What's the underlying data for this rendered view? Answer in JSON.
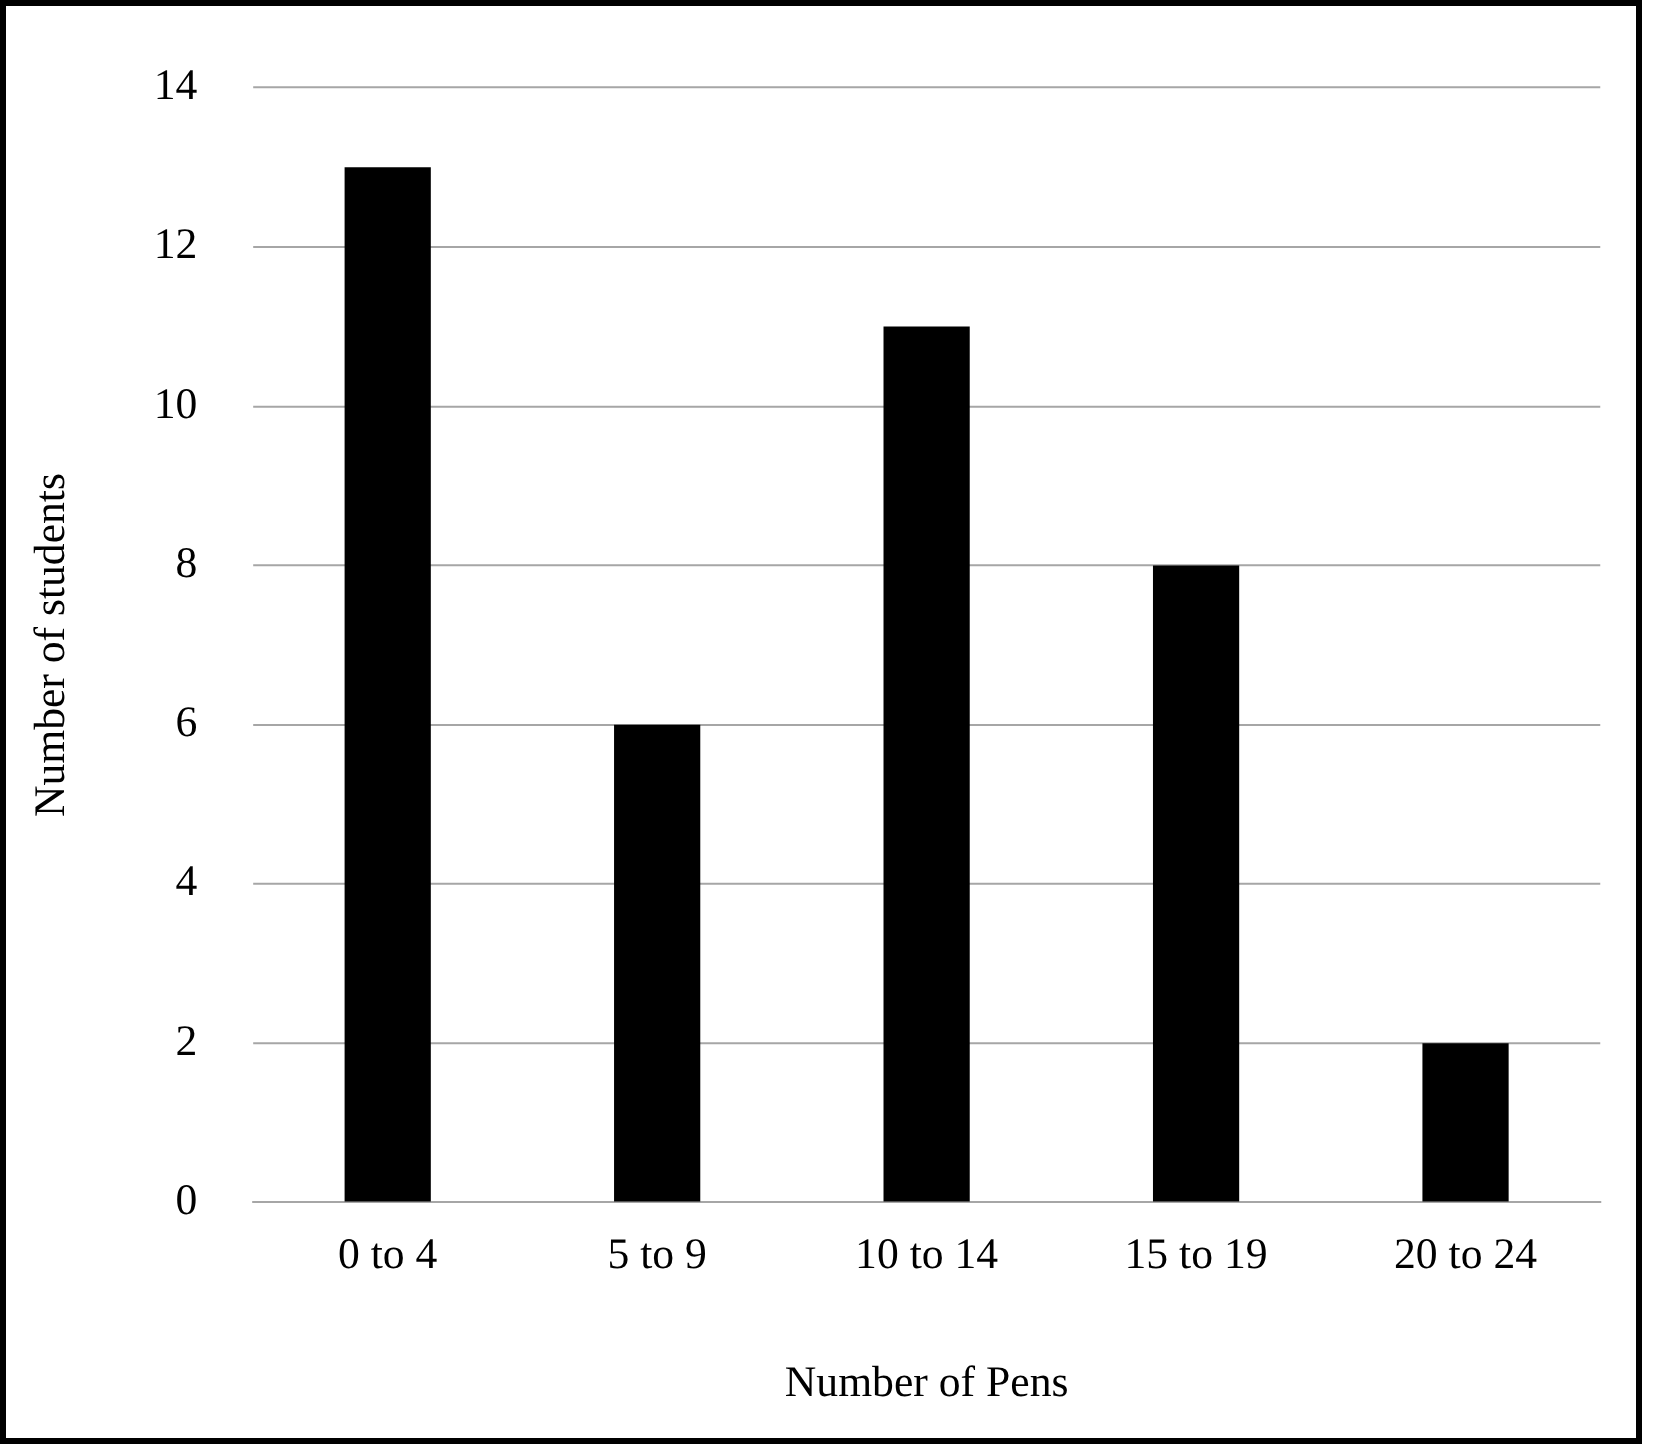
{
  "chart_data": {
    "type": "bar",
    "xlabel": "Number of Pens",
    "ylabel": "Number of students",
    "categories": [
      "0 to 4",
      "5 to 9",
      "10 to 14",
      "15 to 19",
      "20 to 24"
    ],
    "values": [
      13,
      6,
      11,
      8,
      2
    ],
    "color": "#000000",
    "ylim": [
      0,
      14
    ],
    "yticks": [
      0,
      2,
      4,
      6,
      8,
      10,
      12,
      14
    ],
    "grid": "y",
    "legend": false
  }
}
